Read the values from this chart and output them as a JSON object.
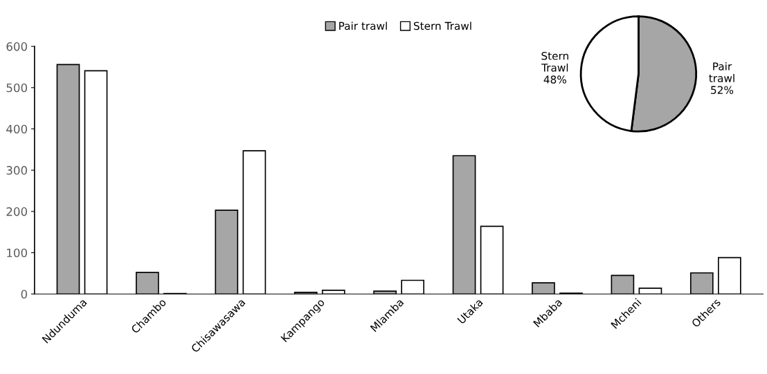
{
  "chart_data": [
    {
      "type": "bar",
      "categories": [
        "Ndunduma",
        "Chambo",
        "Chisawasawa",
        "Kampango",
        "Mlamba",
        "Utaka",
        "Mbaba",
        "Mcheni",
        "Others"
      ],
      "series": [
        {
          "name": "Pair trawl",
          "color": "#a6a6a6",
          "values": [
            556,
            52,
            203,
            4,
            7,
            335,
            27,
            45,
            51
          ]
        },
        {
          "name": "Stern Trawl",
          "color": "#ffffff",
          "values": [
            541,
            1,
            347,
            9,
            33,
            164,
            2,
            14,
            88
          ]
        }
      ],
      "ylim": [
        0,
        600
      ],
      "yticks": [
        0,
        100,
        200,
        300,
        400,
        500,
        600
      ],
      "grid": false,
      "legend": "top"
    },
    {
      "type": "pie",
      "categories": [
        "Pair trawl",
        "Stern Trawl"
      ],
      "values": [
        52,
        48
      ],
      "colors": [
        "#a6a6a6",
        "#ffffff"
      ],
      "value_labels": [
        "52%",
        "48%"
      ]
    }
  ]
}
